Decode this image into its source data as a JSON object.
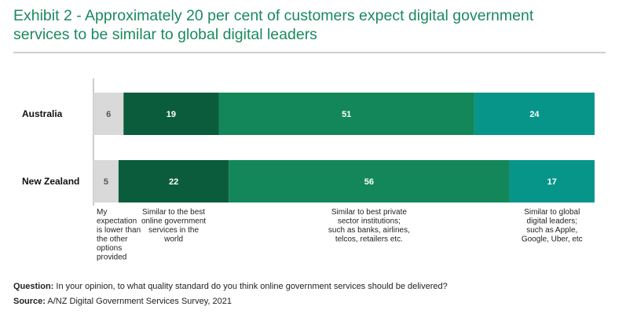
{
  "page": {
    "title_line1": "Exhibit 2 - Approximately 20 per cent of customers expect digital government",
    "title_line2": "services to be similar to global digital leaders"
  },
  "footnote": {
    "question_label": "Question:",
    "question_text": " In your opinion, to what quality standard do you think online government services should be delivered?",
    "source_label": "Source:",
    "source_text": " A/NZ Digital Government Services Survey, 2021"
  },
  "chart_data": {
    "type": "bar",
    "orientation": "horizontal",
    "stacked": true,
    "title": "Exhibit 2 - Approximately 20 per cent of customers expect digital government services to be similar to global digital leaders",
    "categories": [
      "Australia",
      "New Zealand"
    ],
    "series": [
      {
        "values": [
          6,
          5
        ],
        "color": "#d9d9d9",
        "text_color": "#555555",
        "label_lines": [
          "My",
          "expectation",
          "is lower than",
          "the other",
          "options",
          "provided"
        ],
        "label_align": "left"
      },
      {
        "values": [
          19,
          22
        ],
        "color": "#0b5c3d",
        "text_color": "#ffffff",
        "label_lines": [
          "Similar to the best",
          "online government",
          "services in the",
          "world"
        ],
        "label_align": "center"
      },
      {
        "values": [
          51,
          56
        ],
        "color": "#13875a",
        "text_color": "#ffffff",
        "label_lines": [
          "Similar to best private",
          "sector institutions;",
          "such as banks, airlines,",
          "telcos, retailers etc."
        ],
        "label_align": "center"
      },
      {
        "values": [
          24,
          17
        ],
        "color": "#07958a",
        "text_color": "#ffffff",
        "label_lines": [
          "Similar to global",
          "digital leaders;",
          "such as Apple,",
          "Google, Uber, etc"
        ],
        "label_align": "center"
      }
    ],
    "data_labels": true,
    "grid": false,
    "legend": "below bars, category labels under each segment"
  }
}
